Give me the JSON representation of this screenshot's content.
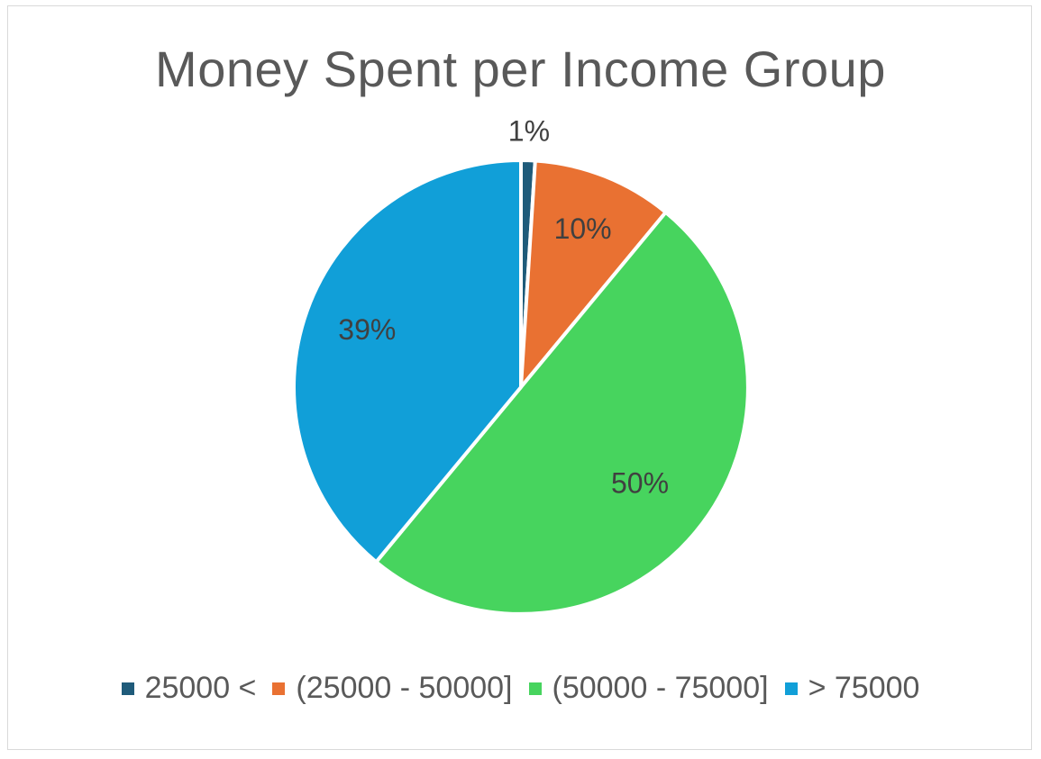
{
  "chart_data": {
    "type": "pie",
    "title": "Money Spent per Income Group",
    "categories": [
      "25000 <",
      "(25000 - 50000]",
      "(50000 - 75000]",
      "> 75000"
    ],
    "values": [
      1,
      10,
      50,
      39
    ],
    "data_labels": [
      "1%",
      "10%",
      "50%",
      "39%"
    ],
    "colors": [
      "#1f5b7a",
      "#e97132",
      "#47d45e",
      "#119fd8"
    ],
    "legend_position": "bottom"
  }
}
